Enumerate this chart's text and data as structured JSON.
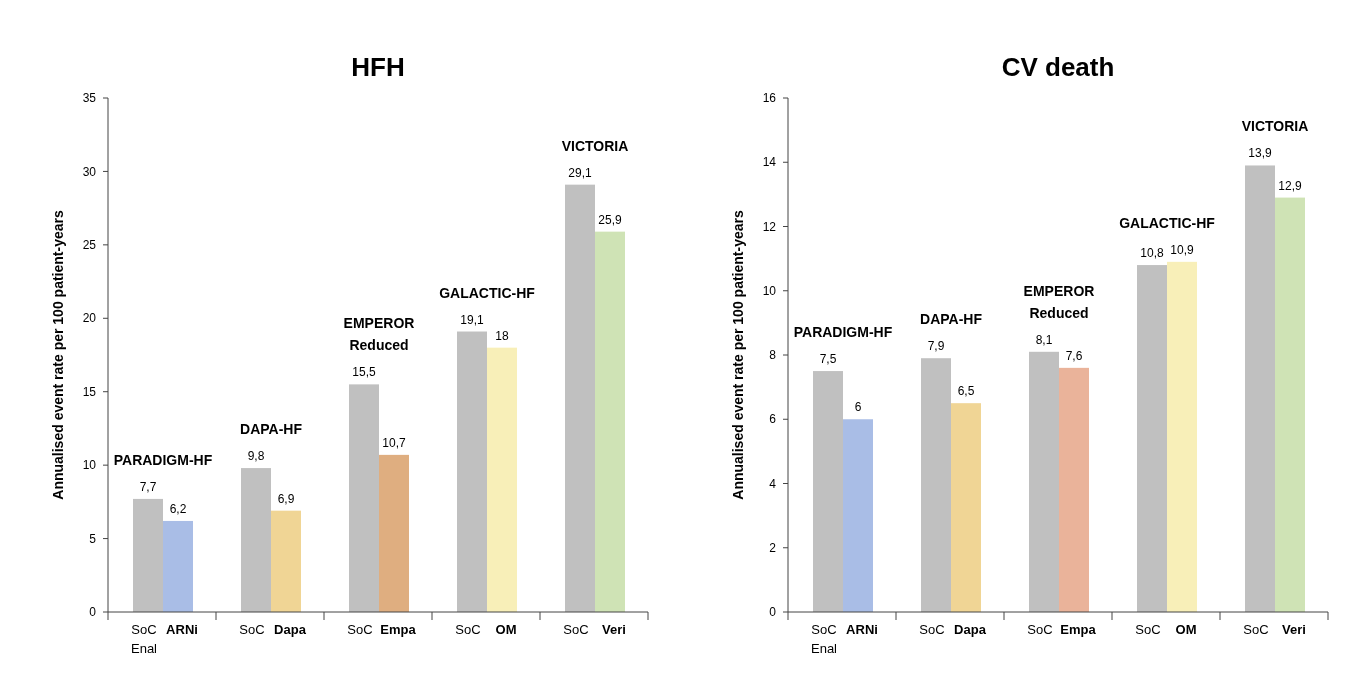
{
  "chart_data": [
    {
      "type": "bar",
      "title": "HFH",
      "ylabel": "Annualised event rate per 100 patient-years",
      "categories": [
        "SoC\nEnal",
        "ARNi",
        "SoC",
        "Dapa",
        "SoC",
        "Empa",
        "SoC",
        "OM",
        "SoC",
        "Veri"
      ],
      "values": [
        7.7,
        6.2,
        9.8,
        6.9,
        15.5,
        10.7,
        19.1,
        18,
        29.1,
        25.9
      ],
      "colors": [
        "#c0c0c0",
        "#a9bde6",
        "#c0c0c0",
        "#f0d595",
        "#c0c0c0",
        "#dfae80",
        "#c0c0c0",
        "#f8efb8",
        "#c0c0c0",
        "#cfe3b5"
      ],
      "value_labels": [
        "7,7",
        "6,2",
        "9,8",
        "6,9",
        "15,5",
        "10,7",
        "19,1",
        "18",
        "29,1",
        "25,9"
      ],
      "annotations": [
        "PARADIGM-HF",
        "DAPA-HF",
        "EMPEROR\nReduced",
        "GALACTIC-HF",
        "VICTORIA"
      ],
      "ylim": [
        0,
        35
      ],
      "yticks": [
        0,
        5,
        10,
        15,
        20,
        25,
        30,
        35
      ],
      "grid": false
    },
    {
      "type": "bar",
      "title": "CV death",
      "ylabel": "Annualised event rate per 100 patient-years",
      "categories": [
        "SoC\nEnal",
        "ARNi",
        "SoC",
        "Dapa",
        "SoC",
        "Empa",
        "SoC",
        "OM",
        "SoC",
        "Veri"
      ],
      "values": [
        7.5,
        6,
        7.9,
        6.5,
        8.1,
        7.6,
        10.8,
        10.9,
        13.9,
        12.9
      ],
      "colors": [
        "#c0c0c0",
        "#a9bde6",
        "#c0c0c0",
        "#f0d595",
        "#c0c0c0",
        "#eab39a",
        "#c0c0c0",
        "#f8efb8",
        "#c0c0c0",
        "#cfe3b5"
      ],
      "value_labels": [
        "7,5",
        "6",
        "7,9",
        "6,5",
        "8,1",
        "7,6",
        "10,8",
        "10,9",
        "13,9",
        "12,9"
      ],
      "annotations": [
        "PARADIGM-HF",
        "DAPA-HF",
        "EMPEROR\nReduced",
        "GALACTIC-HF",
        "VICTORIA"
      ],
      "ylim": [
        0,
        16
      ],
      "yticks": [
        0,
        2,
        4,
        6,
        8,
        10,
        12,
        14,
        16
      ],
      "grid": false
    }
  ]
}
